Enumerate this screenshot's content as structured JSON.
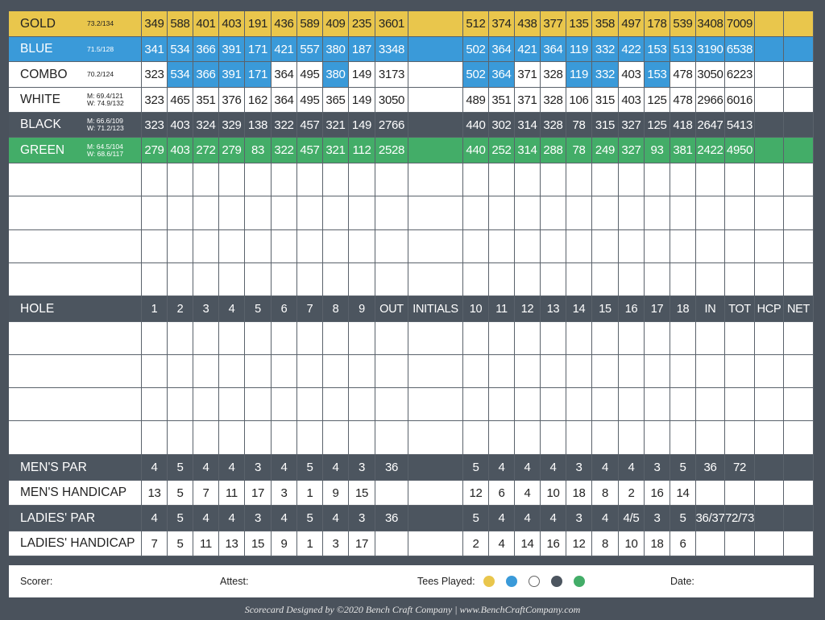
{
  "tees": [
    {
      "name": "GOLD",
      "rating": [
        "73.2/134"
      ],
      "front": [
        "349",
        "588",
        "401",
        "403",
        "191",
        "436",
        "589",
        "409",
        "235"
      ],
      "out": "3601",
      "back": [
        "512",
        "374",
        "438",
        "377",
        "135",
        "358",
        "497",
        "178",
        "539"
      ],
      "in": "3408",
      "tot": "7009"
    },
    {
      "name": "BLUE",
      "rating": [
        "71.5/128"
      ],
      "front": [
        "341",
        "534",
        "366",
        "391",
        "171",
        "421",
        "557",
        "380",
        "187"
      ],
      "out": "3348",
      "back": [
        "502",
        "364",
        "421",
        "364",
        "119",
        "332",
        "422",
        "153",
        "513"
      ],
      "in": "3190",
      "tot": "6538"
    },
    {
      "name": "COMBO",
      "rating": [
        "70.2/124"
      ],
      "front": [
        "323",
        "534",
        "366",
        "391",
        "171",
        "364",
        "495",
        "380",
        "149"
      ],
      "out": "3173",
      "back": [
        "502",
        "364",
        "371",
        "328",
        "119",
        "332",
        "403",
        "153",
        "478"
      ],
      "in": "3050",
      "tot": "6223",
      "highlighted_holes": [
        2,
        3,
        4,
        5,
        8,
        10,
        11,
        14,
        15,
        17
      ]
    },
    {
      "name": "WHITE",
      "rating": [
        "M: 69.4/121",
        "W: 74.9/132"
      ],
      "front": [
        "323",
        "465",
        "351",
        "376",
        "162",
        "364",
        "495",
        "365",
        "149"
      ],
      "out": "3050",
      "back": [
        "489",
        "351",
        "371",
        "328",
        "106",
        "315",
        "403",
        "125",
        "478"
      ],
      "in": "2966",
      "tot": "6016"
    },
    {
      "name": "BLACK",
      "rating": [
        "M: 66.6/109",
        "W: 71.2/123"
      ],
      "front": [
        "323",
        "403",
        "324",
        "329",
        "138",
        "322",
        "457",
        "321",
        "149"
      ],
      "out": "2766",
      "back": [
        "440",
        "302",
        "314",
        "328",
        "78",
        "315",
        "327",
        "125",
        "418"
      ],
      "in": "2647",
      "tot": "5413"
    },
    {
      "name": "GREEN",
      "rating": [
        "M: 64.5/104",
        "W: 68.6/117"
      ],
      "front": [
        "279",
        "403",
        "272",
        "279",
        "83",
        "322",
        "457",
        "321",
        "112"
      ],
      "out": "2528",
      "back": [
        "440",
        "252",
        "314",
        "288",
        "78",
        "249",
        "327",
        "93",
        "381"
      ],
      "in": "2422",
      "tot": "4950"
    }
  ],
  "hole_row": {
    "name": "HOLE",
    "front": [
      "1",
      "2",
      "3",
      "4",
      "5",
      "6",
      "7",
      "8",
      "9"
    ],
    "out": "OUT",
    "initials": "INITIALS",
    "back": [
      "10",
      "11",
      "12",
      "13",
      "14",
      "15",
      "16",
      "17",
      "18"
    ],
    "in": "IN",
    "tot": "TOT",
    "hcp": "HCP",
    "net": "NET"
  },
  "info_rows": [
    {
      "name": "MEN'S PAR",
      "front": [
        "4",
        "5",
        "4",
        "4",
        "3",
        "4",
        "5",
        "4",
        "3"
      ],
      "out": "36",
      "back": [
        "5",
        "4",
        "4",
        "4",
        "3",
        "4",
        "4",
        "3",
        "5"
      ],
      "in": "36",
      "tot": "72"
    },
    {
      "name": "MEN'S HANDICAP",
      "front": [
        "13",
        "5",
        "7",
        "11",
        "17",
        "3",
        "1",
        "9",
        "15"
      ],
      "back": [
        "12",
        "6",
        "4",
        "10",
        "18",
        "8",
        "2",
        "16",
        "14"
      ]
    },
    {
      "name": "LADIES' PAR",
      "front": [
        "4",
        "5",
        "4",
        "4",
        "3",
        "4",
        "5",
        "4",
        "3"
      ],
      "out": "36",
      "back": [
        "5",
        "4",
        "4",
        "4",
        "3",
        "4",
        "4/5",
        "3",
        "5"
      ],
      "in": "36/37",
      "tot": "72/73"
    },
    {
      "name": "LADIES' HANDICAP",
      "front": [
        "7",
        "5",
        "11",
        "13",
        "15",
        "9",
        "1",
        "3",
        "17"
      ],
      "back": [
        "2",
        "4",
        "14",
        "16",
        "12",
        "8",
        "10",
        "18",
        "6"
      ]
    }
  ],
  "footer": {
    "scorer": "Scorer:",
    "attest": "Attest:",
    "tees_played": "Tees Played:",
    "date": "Date:"
  },
  "credit": "Scorecard Designed by ©2020 Bench Craft Company | www.BenchCraftCompany.com"
}
